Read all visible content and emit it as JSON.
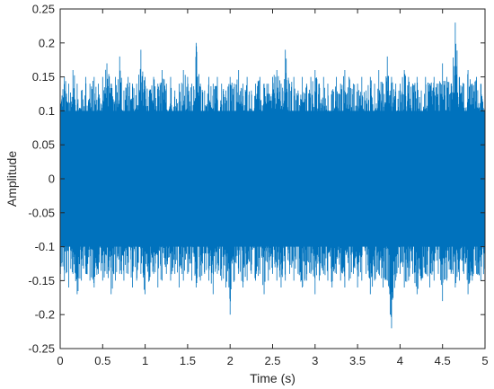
{
  "chart_data": {
    "type": "line",
    "title": "",
    "xlabel": "Time (s)",
    "ylabel": "Amplitude",
    "xlim": [
      0,
      5
    ],
    "ylim": [
      -0.25,
      0.25
    ],
    "x_ticks": [
      "0",
      "0.5",
      "1",
      "1.5",
      "2",
      "2.5",
      "3",
      "3.5",
      "4",
      "4.5",
      "5"
    ],
    "y_ticks": [
      "0.25",
      "0.2",
      "0.15",
      "0.1",
      "0.05",
      "0",
      "-0.05",
      "-0.1",
      "-0.15",
      "-0.2",
      "-0.25"
    ],
    "grid": false,
    "legend": "none",
    "series_color": "#0072BD",
    "series": [
      {
        "x": [
          0.0,
          0.05,
          0.1,
          0.15,
          0.2,
          0.25,
          0.3,
          0.35,
          0.4,
          0.45,
          0.5,
          0.55,
          0.6,
          0.65,
          0.7,
          0.75,
          0.8,
          0.85,
          0.9,
          0.95,
          1.0,
          1.05,
          1.1,
          1.15,
          1.2,
          1.25,
          1.3,
          1.35,
          1.4,
          1.45,
          1.5,
          1.55,
          1.6,
          1.65,
          1.7,
          1.75,
          1.8,
          1.85,
          1.9,
          1.95,
          2.0,
          2.05,
          2.1,
          2.15,
          2.2,
          2.25,
          2.3,
          2.35,
          2.4,
          2.45,
          2.5,
          2.55,
          2.6,
          2.65,
          2.7,
          2.75,
          2.8,
          2.85,
          2.9,
          2.95,
          3.0,
          3.05,
          3.1,
          3.15,
          3.2,
          3.25,
          3.3,
          3.35,
          3.4,
          3.45,
          3.5,
          3.55,
          3.6,
          3.65,
          3.7,
          3.75,
          3.8,
          3.85,
          3.9,
          3.95,
          4.0,
          4.05,
          4.1,
          4.15,
          4.2,
          4.25,
          4.3,
          4.35,
          4.4,
          4.45,
          4.5,
          4.55,
          4.6,
          4.65,
          4.7,
          4.75,
          4.8,
          4.85,
          4.9,
          4.95,
          5.0
        ],
        "y_max": [
          0.14,
          0.15,
          0.14,
          0.16,
          0.14,
          0.13,
          0.15,
          0.14,
          0.15,
          0.14,
          0.15,
          0.17,
          0.14,
          0.15,
          0.18,
          0.13,
          0.15,
          0.14,
          0.14,
          0.19,
          0.15,
          0.13,
          0.15,
          0.14,
          0.16,
          0.14,
          0.15,
          0.13,
          0.14,
          0.16,
          0.15,
          0.14,
          0.2,
          0.14,
          0.13,
          0.15,
          0.14,
          0.15,
          0.14,
          0.13,
          0.15,
          0.14,
          0.16,
          0.14,
          0.15,
          0.13,
          0.14,
          0.15,
          0.14,
          0.14,
          0.15,
          0.16,
          0.14,
          0.19,
          0.14,
          0.15,
          0.13,
          0.15,
          0.14,
          0.15,
          0.16,
          0.14,
          0.15,
          0.14,
          0.13,
          0.15,
          0.14,
          0.16,
          0.15,
          0.14,
          0.14,
          0.15,
          0.13,
          0.15,
          0.14,
          0.16,
          0.14,
          0.18,
          0.15,
          0.14,
          0.14,
          0.16,
          0.15,
          0.14,
          0.15,
          0.13,
          0.15,
          0.14,
          0.15,
          0.14,
          0.17,
          0.15,
          0.14,
          0.23,
          0.15,
          0.14,
          0.16,
          0.14,
          0.15,
          0.14,
          0.13
        ],
        "y_min": [
          -0.14,
          -0.15,
          -0.16,
          -0.14,
          -0.17,
          -0.15,
          -0.14,
          -0.15,
          -0.16,
          -0.14,
          -0.15,
          -0.14,
          -0.17,
          -0.15,
          -0.14,
          -0.15,
          -0.14,
          -0.16,
          -0.15,
          -0.14,
          -0.17,
          -0.15,
          -0.14,
          -0.16,
          -0.15,
          -0.14,
          -0.15,
          -0.14,
          -0.16,
          -0.15,
          -0.14,
          -0.15,
          -0.16,
          -0.15,
          -0.14,
          -0.15,
          -0.17,
          -0.14,
          -0.15,
          -0.16,
          -0.2,
          -0.15,
          -0.14,
          -0.16,
          -0.15,
          -0.14,
          -0.15,
          -0.14,
          -0.17,
          -0.15,
          -0.14,
          -0.15,
          -0.16,
          -0.15,
          -0.14,
          -0.15,
          -0.14,
          -0.16,
          -0.15,
          -0.14,
          -0.17,
          -0.15,
          -0.14,
          -0.15,
          -0.16,
          -0.14,
          -0.15,
          -0.16,
          -0.15,
          -0.14,
          -0.16,
          -0.15,
          -0.14,
          -0.17,
          -0.15,
          -0.14,
          -0.16,
          -0.15,
          -0.22,
          -0.15,
          -0.14,
          -0.16,
          -0.15,
          -0.14,
          -0.17,
          -0.15,
          -0.14,
          -0.16,
          -0.15,
          -0.14,
          -0.18,
          -0.15,
          -0.14,
          -0.16,
          -0.15,
          -0.14,
          -0.17,
          -0.15,
          -0.14,
          -0.15,
          -0.14
        ]
      }
    ]
  }
}
